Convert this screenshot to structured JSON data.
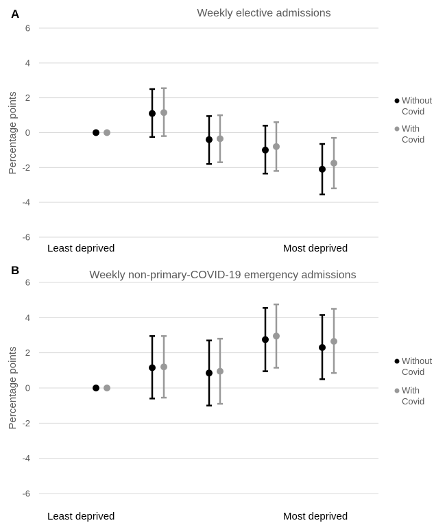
{
  "chart_data": [
    {
      "panel": "A",
      "type": "scatter",
      "title": "Weekly elective admissions",
      "ylabel": "Percentage points",
      "ylim": [
        -6,
        6
      ],
      "yticks": [
        6,
        4,
        2,
        0,
        -2,
        -4,
        -6
      ],
      "x_labels": {
        "left": "Least deprived",
        "right": "Most deprived"
      },
      "grid": true,
      "legend_placement": "right",
      "series": [
        {
          "name": "Without Covid",
          "color": "#000000",
          "points": [
            {
              "group": 1,
              "y": 0.0,
              "low": null,
              "high": null
            },
            {
              "group": 2,
              "y": 1.1,
              "low": -0.25,
              "high": 2.5
            },
            {
              "group": 3,
              "y": -0.4,
              "low": -1.8,
              "high": 0.95
            },
            {
              "group": 4,
              "y": -1.0,
              "low": -2.35,
              "high": 0.4
            },
            {
              "group": 5,
              "y": -2.1,
              "low": -3.55,
              "high": -0.65
            }
          ]
        },
        {
          "name": "With Covid",
          "color": "#999999",
          "points": [
            {
              "group": 1,
              "y": 0.0,
              "low": null,
              "high": null
            },
            {
              "group": 2,
              "y": 1.15,
              "low": -0.2,
              "high": 2.55
            },
            {
              "group": 3,
              "y": -0.35,
              "low": -1.7,
              "high": 1.0
            },
            {
              "group": 4,
              "y": -0.8,
              "low": -2.2,
              "high": 0.6
            },
            {
              "group": 5,
              "y": -1.75,
              "low": -3.2,
              "high": -0.3
            }
          ]
        }
      ]
    },
    {
      "panel": "B",
      "type": "scatter",
      "title": "Weekly non-primary-COVID-19 emergency admissions",
      "ylabel": "Percentage points",
      "ylim": [
        -6,
        6
      ],
      "yticks": [
        6,
        4,
        2,
        0,
        -2,
        -4,
        -6
      ],
      "x_labels": {
        "left": "Least deprived",
        "right": "Most deprived"
      },
      "grid": true,
      "legend_placement": "right",
      "series": [
        {
          "name": "Without Covid",
          "color": "#000000",
          "points": [
            {
              "group": 1,
              "y": 0.0,
              "low": null,
              "high": null
            },
            {
              "group": 2,
              "y": 1.15,
              "low": -0.6,
              "high": 2.95
            },
            {
              "group": 3,
              "y": 0.85,
              "low": -1.0,
              "high": 2.7
            },
            {
              "group": 4,
              "y": 2.75,
              "low": 0.95,
              "high": 4.55
            },
            {
              "group": 5,
              "y": 2.3,
              "low": 0.5,
              "high": 4.15
            }
          ]
        },
        {
          "name": "With Covid",
          "color": "#999999",
          "points": [
            {
              "group": 1,
              "y": 0.0,
              "low": null,
              "high": null
            },
            {
              "group": 2,
              "y": 1.2,
              "low": -0.55,
              "high": 2.95
            },
            {
              "group": 3,
              "y": 0.95,
              "low": -0.9,
              "high": 2.8
            },
            {
              "group": 4,
              "y": 2.95,
              "low": 1.15,
              "high": 4.75
            },
            {
              "group": 5,
              "y": 2.65,
              "low": 0.85,
              "high": 4.5
            }
          ]
        }
      ]
    }
  ],
  "legend": {
    "without_line1": "Without",
    "without_line2": "Covid",
    "with_line1": "With",
    "with_line2": "Covid"
  }
}
